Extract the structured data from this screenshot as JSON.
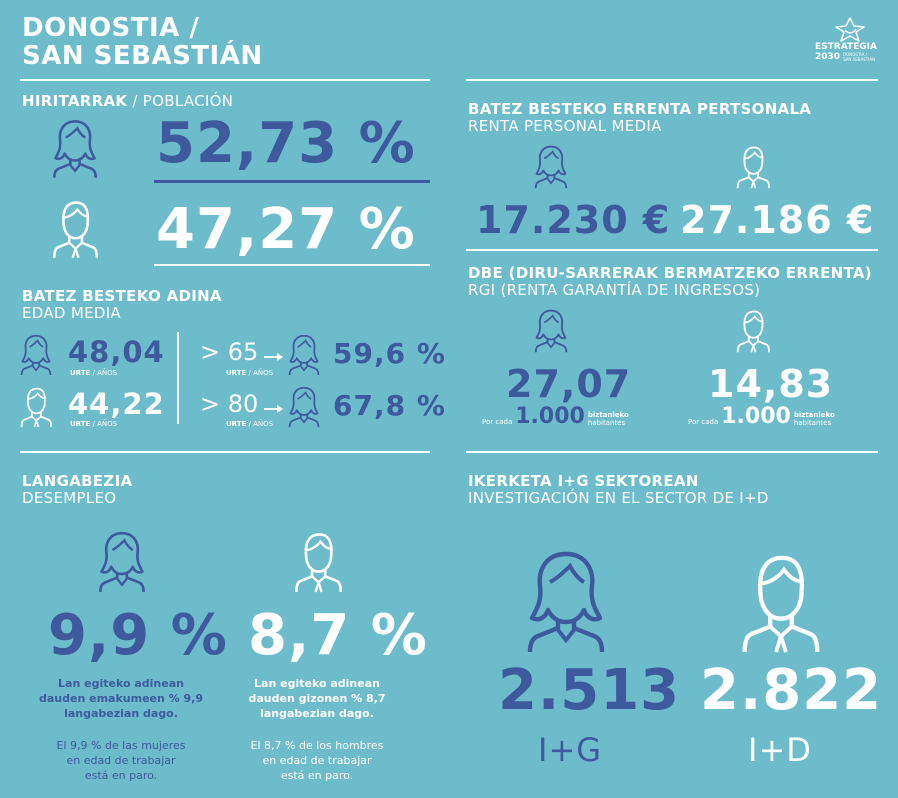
{
  "city": {
    "line1": "DONOSTIA /",
    "line2": "SAN SEBASTIÁN"
  },
  "logo": {
    "name": "ESTRATEGIA",
    "year": "2030",
    "sub1": "DONOSTIA /",
    "sub2": "SAN SEBASTIÁN"
  },
  "population": {
    "label_eu": "HIRITARRAK",
    "label_es": " / POBLACIÓN",
    "women_pct": "52,73 %",
    "men_pct": "47,27 %"
  },
  "age": {
    "label_eu": "BATEZ BESTEKO ADINA",
    "label_es": "EDAD MEDIA",
    "women_value": "48,04",
    "men_value": "44,22",
    "unit_eu": "URTE",
    "unit_es": " / AÑOS",
    "over65": "> 65",
    "over80": "> 80",
    "over65_pct": "59,6 %",
    "over80_pct": "67,8 %"
  },
  "income": {
    "label_eu": "BATEZ BESTEKO ERRENTA PERTSONALA",
    "label_es": "RENTA PERSONAL MEDIA",
    "women": "17.230 €",
    "men": "27.186 €"
  },
  "rgi": {
    "label_eu": "DBE (DIRU-SARRERAK BERMATZEKO ERRENTA)",
    "label_es": "RGI (RENTA GARANTÍA DE INGRESOS)",
    "women": "27,07",
    "men": "14,83",
    "por_cada": "Por cada",
    "thousand": "1.000",
    "biztanleko": "biztanleko",
    "habitantes": "habitantes"
  },
  "unemployment": {
    "label_eu": "LANGABEZIA",
    "label_es": "DESEMPLEO",
    "women_pct": "9,9 %",
    "men_pct": "8,7 %",
    "women_eu": [
      "Lan egiteko adinean",
      "dauden emakumeen % 9,9",
      "langabezian dago."
    ],
    "women_es": [
      "El 9,9 % de las mujeres",
      "en edad de trabajar",
      "está en paro."
    ],
    "men_eu": [
      "Lan egiteko adinean",
      "dauden gizonen % 8,7",
      "langabezian dago."
    ],
    "men_es": [
      "El 8,7 % de los hombres",
      "en edad de trabajar",
      "está en paro."
    ]
  },
  "research": {
    "label_eu": "IKERKETA I+G SEKTOREAN",
    "label_es": "INVESTIGACIÓN EN EL SECTOR DE I+D",
    "women": "2.513",
    "men": "2.822",
    "women_label": "I+G",
    "men_label": "I+D"
  },
  "colors": {
    "background": "#6cbccb",
    "navy": "#3f5a9c",
    "white": "#ffffff"
  },
  "icons": {
    "woman": "woman-icon",
    "man": "man-icon",
    "arrow": "arrow-right-icon"
  }
}
